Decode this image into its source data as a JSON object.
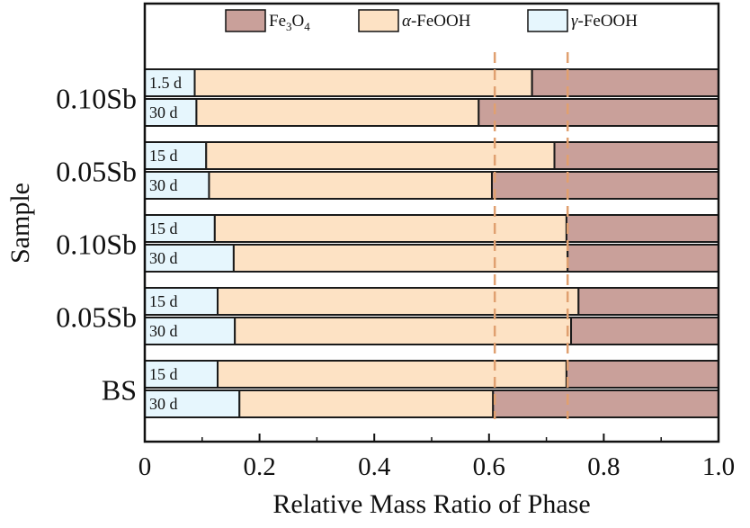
{
  "chart_data": {
    "type": "bar",
    "orientation": "horizontal",
    "stacked": true,
    "xlabel": "Relative Mass Ratio of Phase",
    "ylabel": "Sample",
    "xlim": [
      0,
      1.0
    ],
    "x_ticks": [
      "0",
      "0.2",
      "0.4",
      "0.6",
      "0.8",
      "1.0"
    ],
    "legend": {
      "position": "top",
      "entries": [
        {
          "label_main": "Fe",
          "label_sub1": "3",
          "label_mid": "O",
          "label_sub2": "4",
          "label_suffix": "",
          "color": "#c9a09a"
        },
        {
          "label_main": "",
          "label_sub1": "",
          "label_mid": "",
          "label_sub2": "",
          "label_greek": "α",
          "label_suffix": "-FeOOH",
          "color": "#fde2c4"
        },
        {
          "label_main": "",
          "label_sub1": "",
          "label_mid": "",
          "label_sub2": "",
          "label_greek": "γ",
          "label_suffix": "-FeOOH",
          "color": "#e6f6fd"
        }
      ]
    },
    "series_order": [
      "γ-FeOOH",
      "α-FeOOH",
      "Fe3O4"
    ],
    "groups": [
      {
        "label": "0.10Sb",
        "bars": [
          {
            "tag": "1.5 d",
            "gamma": 0.087,
            "alpha": 0.588,
            "fe3o4": 0.325
          },
          {
            "tag": "30 d",
            "gamma": 0.09,
            "alpha": 0.492,
            "fe3o4": 0.418
          }
        ]
      },
      {
        "label": "0.05Sb",
        "bars": [
          {
            "tag": "15 d",
            "gamma": 0.107,
            "alpha": 0.607,
            "fe3o4": 0.286
          },
          {
            "tag": "30 d",
            "gamma": 0.112,
            "alpha": 0.493,
            "fe3o4": 0.395
          }
        ]
      },
      {
        "label": "0.10Sb",
        "bars": [
          {
            "tag": "15 d",
            "gamma": 0.122,
            "alpha": 0.613,
            "fe3o4": 0.265
          },
          {
            "tag": "30 d",
            "gamma": 0.155,
            "alpha": 0.582,
            "fe3o4": 0.263
          }
        ]
      },
      {
        "label": "0.05Sb",
        "bars": [
          {
            "tag": "15 d",
            "gamma": 0.127,
            "alpha": 0.629,
            "fe3o4": 0.244
          },
          {
            "tag": "30 d",
            "gamma": 0.157,
            "alpha": 0.586,
            "fe3o4": 0.257
          }
        ]
      },
      {
        "label": "BS",
        "bars": [
          {
            "tag": "15 d",
            "gamma": 0.127,
            "alpha": 0.608,
            "fe3o4": 0.265
          },
          {
            "tag": "30 d",
            "gamma": 0.165,
            "alpha": 0.442,
            "fe3o4": 0.393
          }
        ]
      }
    ],
    "reference_lines": [
      0.61,
      0.737
    ],
    "colors": {
      "fe3o4": "#c9a09a",
      "alpha": "#fde2c4",
      "gamma": "#e6f6fd",
      "refline": "#e0a070",
      "stroke": "#1a1a1a"
    }
  }
}
